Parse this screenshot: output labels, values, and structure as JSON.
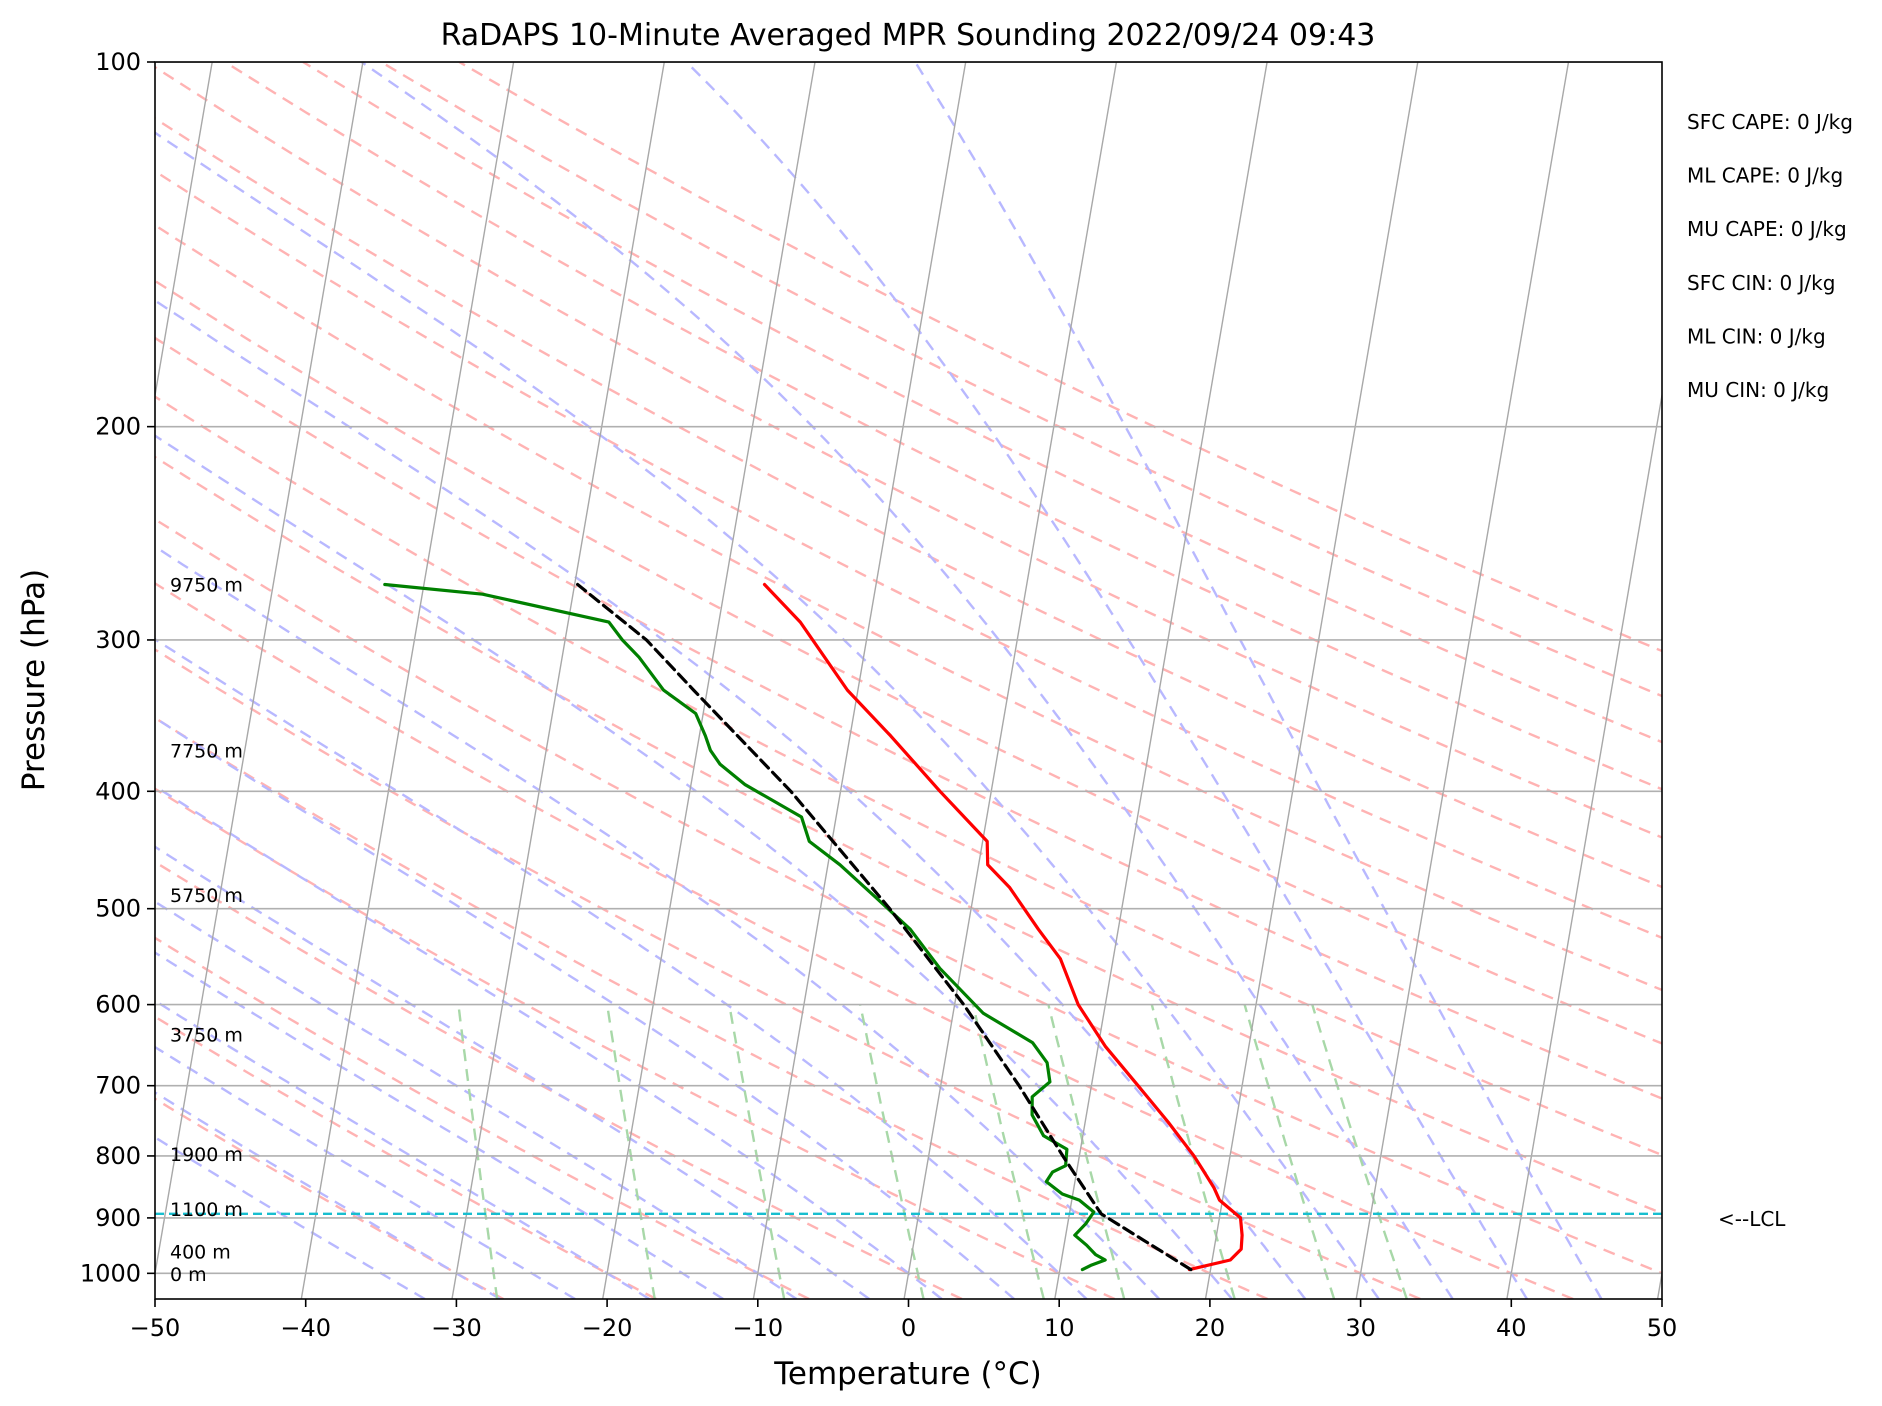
{
  "chart_data": {
    "type": "line",
    "title": "RaDAPS 10-Minute Averaged MPR Sounding 2022/09/24 09:43",
    "xlabel": "Temperature (°C)",
    "ylabel": "Pressure (hPa)",
    "xlim": [
      -50,
      50
    ],
    "ylim": [
      1050,
      100
    ],
    "y_scale": "log",
    "x_ticks": [
      "−50",
      "−40",
      "−30",
      "−20",
      "−10",
      "0",
      "10",
      "20",
      "30",
      "40",
      "50"
    ],
    "y_ticks": [
      {
        "p": 100,
        "label": "100"
      },
      {
        "p": 200,
        "label": "200"
      },
      {
        "p": 300,
        "label": "300"
      },
      {
        "p": 400,
        "label": "400"
      },
      {
        "p": 500,
        "label": "500"
      },
      {
        "p": 600,
        "label": "600"
      },
      {
        "p": 700,
        "label": "700"
      },
      {
        "p": 800,
        "label": "800"
      },
      {
        "p": 900,
        "label": "900"
      },
      {
        "p": 1000,
        "label": "1000"
      }
    ],
    "grid": true,
    "skew_t_log_p": true,
    "background_lines": {
      "isotherms_color": "#a8a8a8",
      "dry_adiabats_color": "#ffb3b3",
      "moist_adiabats_color": "#b8b8ff",
      "mixing_ratio_color": "#a8d8a8"
    },
    "series": [
      {
        "color": "#ff0000",
        "points": [
          [
            993,
            18.6
          ],
          [
            975,
            21.2
          ],
          [
            955,
            21.8
          ],
          [
            930,
            21.7
          ],
          [
            900,
            21.4
          ],
          [
            870,
            19.8
          ],
          [
            850,
            19.3
          ],
          [
            820,
            18.3
          ],
          [
            800,
            17.6
          ],
          [
            750,
            15.5
          ],
          [
            700,
            13.1
          ],
          [
            650,
            10.5
          ],
          [
            600,
            8.2
          ],
          [
            550,
            6.5
          ],
          [
            520,
            4.7
          ],
          [
            480,
            2.3
          ],
          [
            460,
            0.6
          ],
          [
            440,
            0.3
          ],
          [
            400,
            -3.4
          ],
          [
            360,
            -7.3
          ],
          [
            330,
            -10.7
          ],
          [
            290,
            -14.6
          ],
          [
            270,
            -17.4
          ]
        ]
      },
      {
        "color": "#008000",
        "points": [
          [
            993,
            11.5
          ],
          [
            985,
            12.0
          ],
          [
            975,
            12.9
          ],
          [
            965,
            12.2
          ],
          [
            948,
            11.5
          ],
          [
            930,
            10.6
          ],
          [
            910,
            11.2
          ],
          [
            890,
            11.6
          ],
          [
            870,
            10.5
          ],
          [
            860,
            9.3
          ],
          [
            840,
            8.1
          ],
          [
            825,
            8.4
          ],
          [
            815,
            9.2
          ],
          [
            790,
            9.1
          ],
          [
            770,
            7.4
          ],
          [
            740,
            6.4
          ],
          [
            715,
            6.2
          ],
          [
            695,
            7.2
          ],
          [
            670,
            6.8
          ],
          [
            645,
            5.6
          ],
          [
            610,
            2.0
          ],
          [
            560,
            -1.4
          ],
          [
            520,
            -3.8
          ],
          [
            490,
            -6.4
          ],
          [
            460,
            -9.2
          ],
          [
            440,
            -11.5
          ],
          [
            420,
            -12.3
          ],
          [
            395,
            -16.4
          ],
          [
            380,
            -18.3
          ],
          [
            370,
            -19.1
          ],
          [
            360,
            -19.6
          ],
          [
            345,
            -20.5
          ],
          [
            330,
            -22.9
          ],
          [
            310,
            -24.9
          ],
          [
            300,
            -26.2
          ],
          [
            290,
            -27.3
          ],
          [
            275,
            -36.0
          ],
          [
            270,
            -42.6
          ]
        ]
      },
      {
        "color": "#000000",
        "dashed": true,
        "points": [
          [
            993,
            18.7
          ],
          [
            893,
            12.1
          ],
          [
            800,
            8.9
          ],
          [
            700,
            5.2
          ],
          [
            600,
            0.6
          ],
          [
            500,
            -5.4
          ],
          [
            400,
            -13.3
          ],
          [
            330,
            -20.9
          ],
          [
            300,
            -24.6
          ],
          [
            270,
            -29.8
          ]
        ]
      }
    ],
    "lcl": {
      "pressure": 893,
      "label": "<--LCL",
      "color": "#17becf"
    },
    "height_labels": [
      {
        "p": 270,
        "label": "9750 m"
      },
      {
        "p": 370,
        "label": "7750 m"
      },
      {
        "p": 487,
        "label": "5750 m"
      },
      {
        "p": 635,
        "label": "3750 m"
      },
      {
        "p": 797,
        "label": "1900 m"
      },
      {
        "p": 885,
        "label": "1100 m"
      },
      {
        "p": 959,
        "label": "400 m"
      },
      {
        "p": 1001,
        "label": "0 m"
      }
    ],
    "stats": [
      "SFC CAPE: 0 J/kg",
      "ML CAPE: 0 J/kg",
      "MU CAPE: 0 J/kg",
      "SFC CIN: 0 J/kg",
      "ML CIN: 0 J/kg",
      "MU CIN: 0 J/kg"
    ]
  }
}
